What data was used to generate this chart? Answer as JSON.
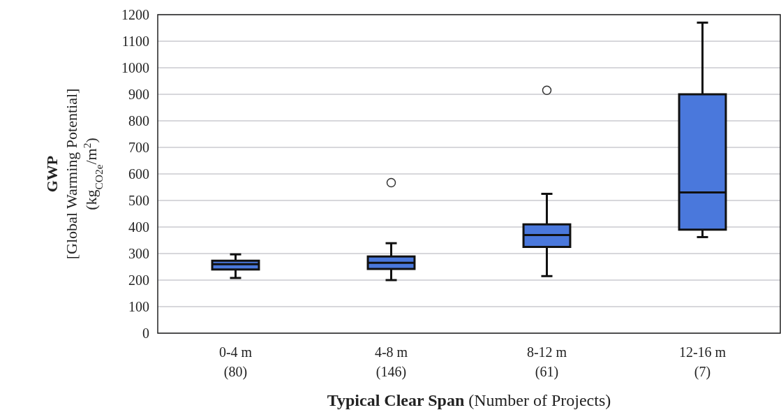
{
  "chart_data": {
    "type": "box",
    "categories": [
      "0-4 m\n(80)",
      "4-8 m\n(146)",
      "8-12 m\n(61)",
      "12-16 m\n(7)"
    ],
    "xlabel": "Typical Clear Span (Number of Projects)",
    "ylabel": "GWP\n[Global Warming Potential]\n(kg$_{CO2e}$/m$^{2}$)",
    "color": "#4a78dc",
    "boxes": [
      {
        "low": 208,
        "q1": 240,
        "median": 260,
        "q3": 273,
        "high": 297
      },
      {
        "low": 200,
        "q1": 242,
        "median": 265,
        "q3": 289,
        "high": 339,
        "outliers": [
          567
        ]
      },
      {
        "low": 215,
        "q1": 325,
        "median": 370,
        "q3": 410,
        "high": 525,
        "outliers": [
          915
        ]
      },
      {
        "low": 362,
        "q1": 390,
        "median": 530,
        "q3": 900,
        "high": 1170
      }
    ],
    "ylim": [
      0,
      1200
    ],
    "yticks": [
      0,
      100,
      200,
      300,
      400,
      500,
      600,
      700,
      800,
      900,
      1000,
      1100,
      1200
    ],
    "grid": "y"
  }
}
